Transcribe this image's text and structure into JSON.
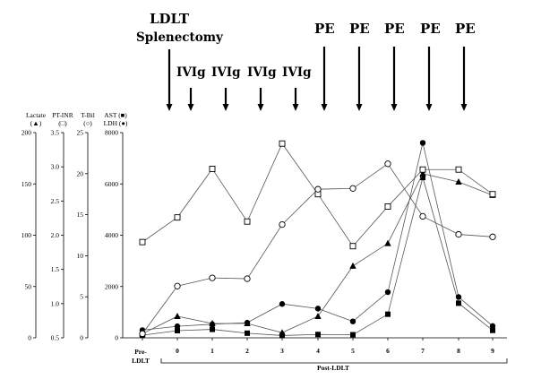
{
  "annotations": {
    "ldlt": "LDLT",
    "splenectomy": "Splenectomy",
    "ivig": "IVIg",
    "pe": "PE"
  },
  "axes": {
    "lactate": {
      "title": "Lactate",
      "symbol": "(▲)",
      "ticks": [
        "200",
        "150",
        "100",
        "50",
        "0"
      ]
    },
    "ptinr": {
      "title": "PT-INR",
      "symbol": "(□)",
      "ticks": [
        "3.5",
        "3.0",
        "2.5",
        "2.0",
        "1.5",
        "1.0",
        "0.5"
      ]
    },
    "tbil": {
      "title": "T-Bil",
      "symbol": "(○)",
      "ticks": [
        "25",
        "20",
        "15",
        "10",
        "5",
        "0"
      ]
    },
    "ast": {
      "title": "AST (■)",
      "title2": "LDH (●)",
      "ticks": [
        "8000",
        "6000",
        "4000",
        "2000",
        "0"
      ]
    }
  },
  "xaxis": {
    "pre_label_1": "Pre-",
    "pre_label_2": "LDLT",
    "post_label": "Post-LDLT",
    "tick_labels": [
      "0",
      "1",
      "2",
      "3",
      "4",
      "5",
      "6",
      "7",
      "8",
      "9"
    ]
  },
  "chart_data": {
    "type": "line",
    "x": [
      "Pre-LDLT",
      "0",
      "1",
      "2",
      "3",
      "4",
      "5",
      "6",
      "7",
      "8",
      "9"
    ],
    "series": [
      {
        "name": "AST",
        "axis": "AST/LDH",
        "marker": "filled-square",
        "values": [
          100,
          280,
          330,
          180,
          90,
          130,
          120,
          920,
          6250,
          1350,
          290
        ]
      },
      {
        "name": "LDH",
        "axis": "AST/LDH",
        "marker": "filled-circle",
        "values": [
          300,
          450,
          530,
          590,
          1320,
          1140,
          640,
          1780,
          7600,
          1590,
          460
        ]
      },
      {
        "name": "Lactate",
        "axis": "Lactate",
        "marker": "filled-triangle",
        "values": [
          4,
          21,
          14,
          14,
          5,
          21,
          70,
          92,
          160,
          152,
          139
        ]
      },
      {
        "name": "PT-INR",
        "axis": "PT-INR",
        "marker": "open-square",
        "values": [
          1.9,
          2.26,
          2.97,
          2.2,
          3.34,
          2.6,
          1.84,
          2.42,
          2.96,
          2.96,
          2.6
        ]
      },
      {
        "name": "T-Bil",
        "axis": "T-Bil",
        "marker": "open-circle",
        "values": [
          0.5,
          6.3,
          7.3,
          7.2,
          13.8,
          18.1,
          18.2,
          21.2,
          14.8,
          12.6,
          12.3
        ]
      }
    ],
    "axis_ranges": {
      "Lactate": [
        0,
        200
      ],
      "PT-INR": [
        0.5,
        3.5
      ],
      "T-Bil": [
        0,
        25
      ],
      "AST/LDH": [
        0,
        8000
      ]
    },
    "events": {
      "LDLT Splenectomy": [
        "0"
      ],
      "IVIg": [
        "0-1",
        "1-2",
        "2-3",
        "3-4"
      ],
      "PE": [
        "4",
        "5",
        "6",
        "7",
        "8"
      ]
    }
  }
}
